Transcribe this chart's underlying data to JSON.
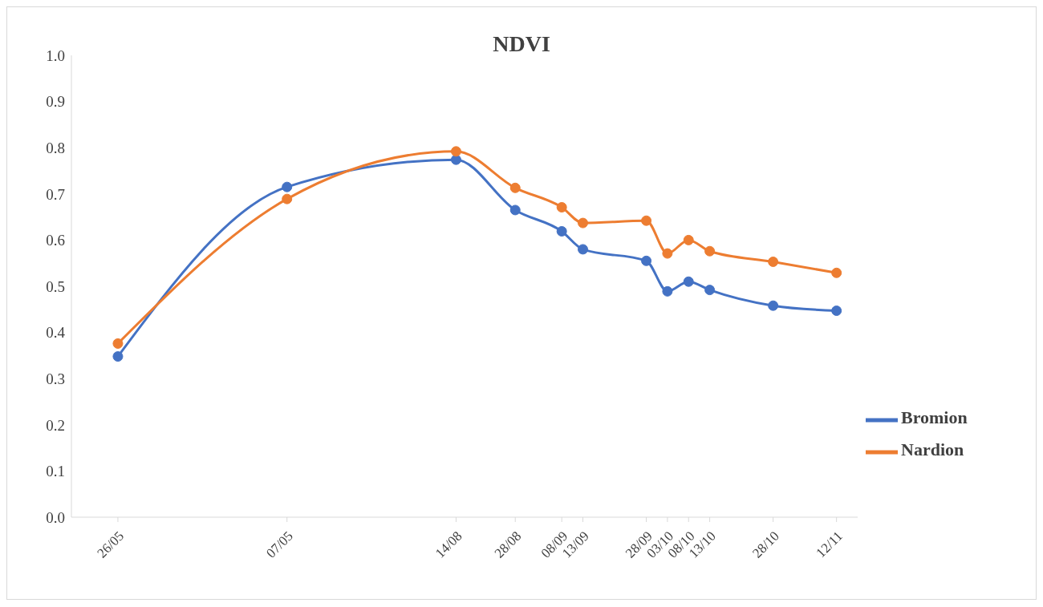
{
  "chart_data": {
    "type": "line",
    "title": "NDVI",
    "x": [
      "--05-26",
      "--07-05",
      "--08-14",
      "--08-28",
      "--09-08",
      "--09-13",
      "--09-28",
      "--10-03",
      "--10-08",
      "--10-13",
      "--10-28",
      "--11-12"
    ],
    "xticks": [
      {
        "value": "--05-26",
        "label": "26/05"
      },
      {
        "value": "--07-05",
        "label": "07/05"
      },
      {
        "value": "--08-14",
        "label": "14/08"
      },
      {
        "value": "--08-28",
        "label": "28/08"
      },
      {
        "value": "--09-08",
        "label": "08/09"
      },
      {
        "value": "--09-13",
        "label": "13/09"
      },
      {
        "value": "--09-28",
        "label": "28/09"
      },
      {
        "value": "--10-03",
        "label": "03/10"
      },
      {
        "value": "--10-08",
        "label": "08/10"
      },
      {
        "value": "--10-13",
        "label": "13/10"
      },
      {
        "value": "--10-28",
        "label": "28/10"
      },
      {
        "value": "--11-12",
        "label": "12/11"
      }
    ],
    "series": [
      {
        "name": "Bromion",
        "color": "#4472c4",
        "values": [
          0.348,
          0.715,
          0.774,
          0.665,
          0.619,
          0.58,
          0.555,
          0.489,
          0.51,
          0.492,
          0.458,
          0.447
        ]
      },
      {
        "name": "Nardion",
        "color": "#ed7d31",
        "values": [
          0.376,
          0.689,
          0.792,
          0.713,
          0.671,
          0.637,
          0.642,
          0.571,
          0.6,
          0.576,
          0.553,
          0.529
        ]
      }
    ],
    "xlim": [
      "--05-15",
      "--11-17"
    ],
    "ylim": [
      0,
      1
    ],
    "yticks": [
      {
        "value": 0,
        "label": "0.0"
      },
      0.1,
      0.2,
      0.3,
      0.4,
      0.5,
      0.6,
      0.7,
      0.8,
      0.9,
      {
        "value": 1,
        "label": "1.0"
      }
    ],
    "grid": false,
    "legend": "right",
    "marker": "circle",
    "line_style": "solid"
  }
}
